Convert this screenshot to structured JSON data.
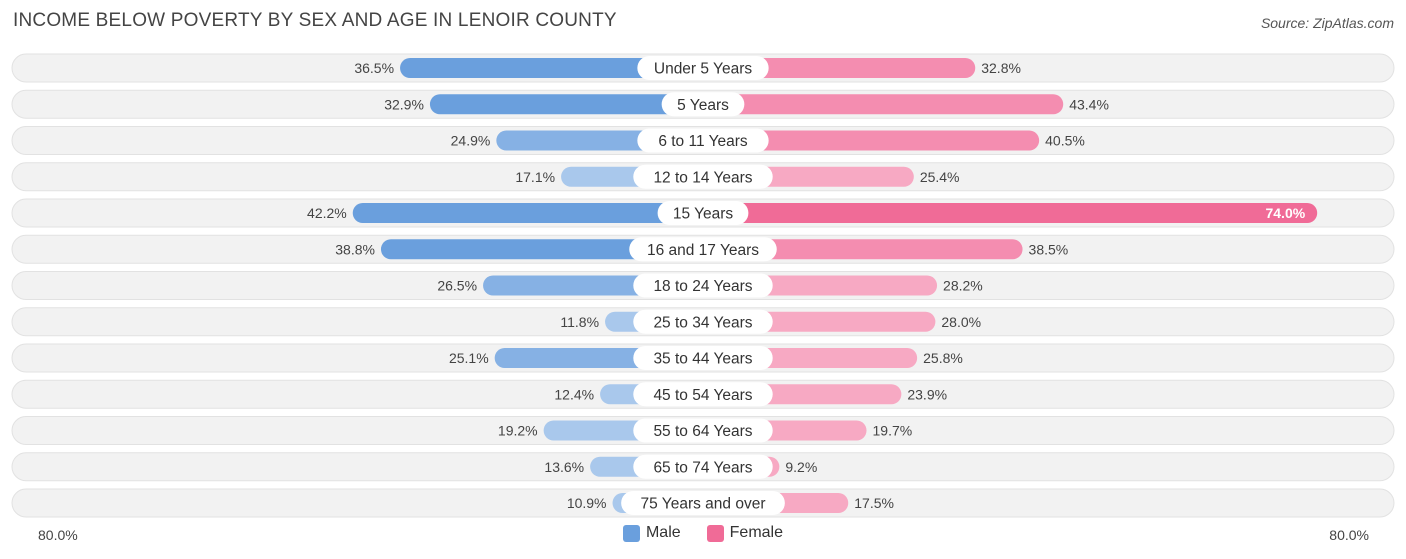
{
  "header": {
    "title": "INCOME BELOW POVERTY BY SEX AND AGE IN LENOIR COUNTY",
    "source": "Source: ZipAtlas.com"
  },
  "colors": {
    "male_strong": "#6a9fdd",
    "male_light": "#a9c8ec",
    "female_strong": "#f06b97",
    "female_light": "#f7a9c3",
    "track": "#eeeeee"
  },
  "legend": {
    "male_label": "Male",
    "female_label": "Female"
  },
  "axis": {
    "left_label": "80.0%",
    "right_label": "80.0%"
  },
  "chart_data": {
    "type": "bar",
    "orientation": "horizontal-diverging",
    "title": "INCOME BELOW POVERTY BY SEX AND AGE IN LENOIR COUNTY",
    "xlim": [
      -80,
      80
    ],
    "categories": [
      "Under 5 Years",
      "5 Years",
      "6 to 11 Years",
      "12 to 14 Years",
      "15 Years",
      "16 and 17 Years",
      "18 to 24 Years",
      "25 to 34 Years",
      "35 to 44 Years",
      "45 to 54 Years",
      "55 to 64 Years",
      "65 to 74 Years",
      "75 Years and over"
    ],
    "series": [
      {
        "name": "Male",
        "values": [
          36.5,
          32.9,
          24.9,
          17.1,
          42.2,
          38.8,
          26.5,
          11.8,
          25.1,
          12.4,
          19.2,
          13.6,
          10.9
        ],
        "labels": [
          "36.5%",
          "32.9%",
          "24.9%",
          "17.1%",
          "42.2%",
          "38.8%",
          "26.5%",
          "11.8%",
          "25.1%",
          "12.4%",
          "19.2%",
          "13.6%",
          "10.9%"
        ]
      },
      {
        "name": "Female",
        "values": [
          32.8,
          43.4,
          40.5,
          25.4,
          74.0,
          38.5,
          28.2,
          28.0,
          25.8,
          23.9,
          19.7,
          9.2,
          17.5
        ],
        "labels": [
          "32.8%",
          "43.4%",
          "40.5%",
          "25.4%",
          "74.0%",
          "38.5%",
          "28.2%",
          "28.0%",
          "25.8%",
          "23.9%",
          "19.7%",
          "9.2%",
          "17.5%"
        ]
      }
    ]
  }
}
